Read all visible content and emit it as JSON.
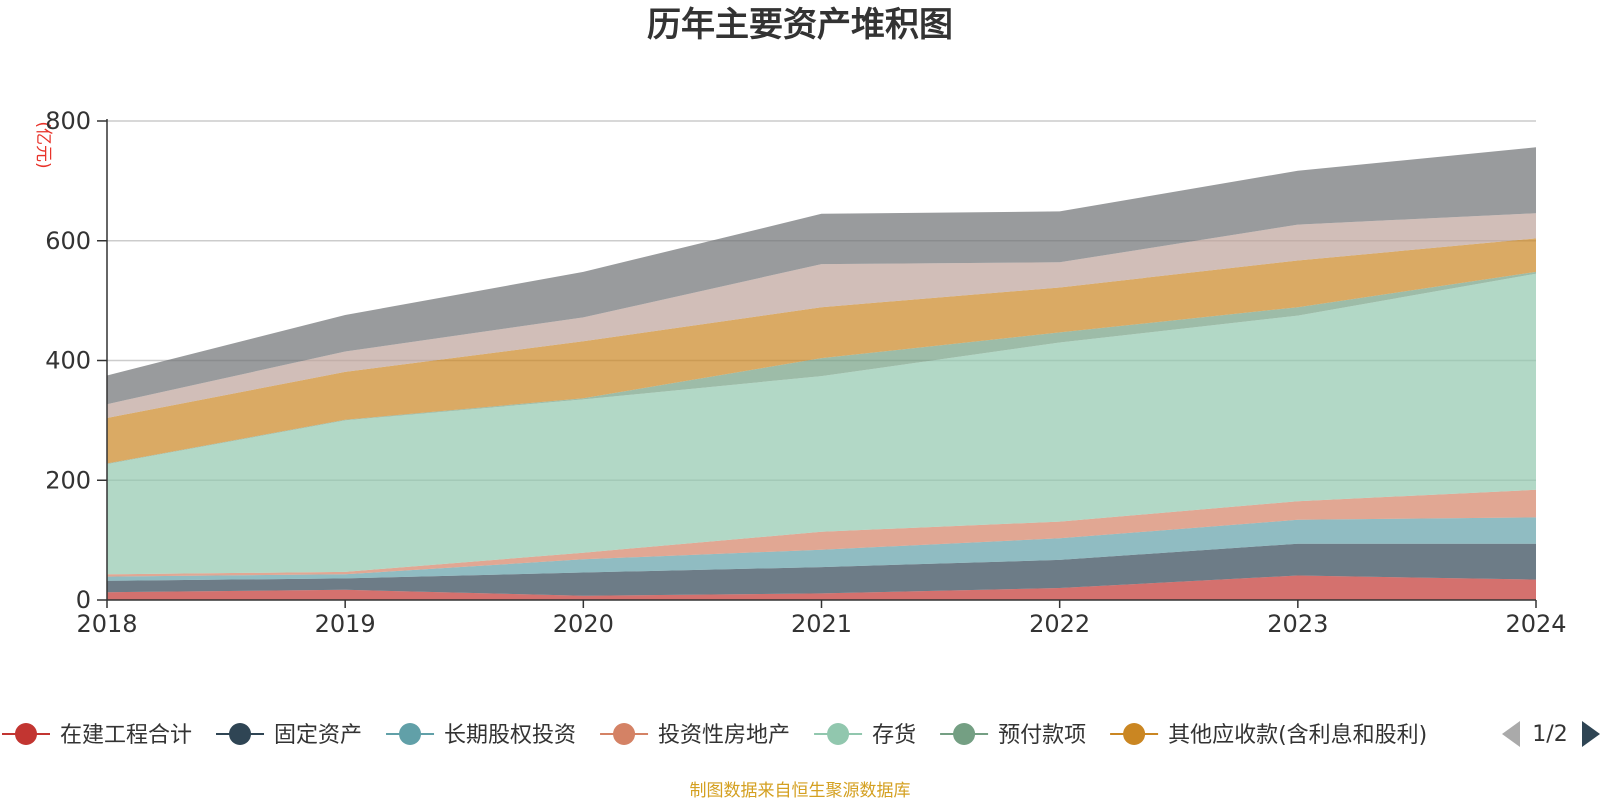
{
  "chart_data": {
    "type": "area",
    "stacked": true,
    "title": "历年主要资产堆积图",
    "unit": "(亿元)",
    "x": [
      "2018",
      "2019",
      "2020",
      "2021",
      "2022",
      "2023",
      "2024"
    ],
    "ylim": [
      0,
      800
    ],
    "yticks": [
      0,
      200,
      400,
      600,
      800
    ],
    "grid": true,
    "series": [
      {
        "name": "在建工程合计",
        "color": "#c23531",
        "values": [
          13,
          17,
          7,
          11,
          20,
          41,
          34
        ]
      },
      {
        "name": "固定资产",
        "color": "#2f4554",
        "values": [
          19,
          19,
          39,
          44,
          47,
          53,
          60
        ]
      },
      {
        "name": "长期股权投资",
        "color": "#61a0a8",
        "values": [
          7,
          7,
          22,
          29,
          36,
          40,
          44
        ]
      },
      {
        "name": "投资性房地产",
        "color": "#d48265",
        "values": [
          4,
          4,
          11,
          30,
          28,
          31,
          46
        ]
      },
      {
        "name": "存货",
        "color": "#91c7ae",
        "values": [
          184,
          253,
          256,
          260,
          299,
          310,
          361
        ]
      },
      {
        "name": "预付款项",
        "color": "#749f83",
        "values": [
          1,
          1,
          2,
          30,
          17,
          14,
          3
        ]
      },
      {
        "name": "其他应收款(含利息和股利)",
        "color": "#ca8622",
        "values": [
          76,
          80,
          95,
          85,
          75,
          78,
          56
        ]
      },
      {
        "name": "",
        "color": "#bda29a",
        "values": [
          23,
          34,
          40,
          72,
          42,
          60,
          42
        ]
      },
      {
        "name": "",
        "color": "#6e7074",
        "values": [
          48,
          61,
          76,
          84,
          85,
          90,
          110
        ]
      }
    ],
    "legend": {
      "position": "bottom",
      "page": "1/2"
    },
    "source": "制图数据来自恒生聚源数据库"
  }
}
